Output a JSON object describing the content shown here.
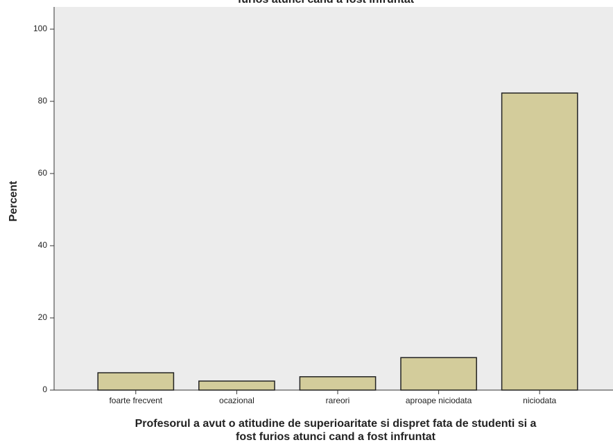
{
  "chart_data": {
    "type": "bar",
    "title": "furios atunci cand a fost infruntat",
    "x_label": [
      "Profesorul a avut o atitudine de superioaritate si dispret fata de studenti si a",
      "fost furios atunci cand a fost infruntat"
    ],
    "y_label": "Percent",
    "categories": [
      "foarte frecvent",
      "ocazional",
      "rareori",
      "aproape niciodata",
      "niciodata"
    ],
    "values": [
      4.8,
      2.5,
      3.7,
      9.0,
      82.3
    ],
    "color": "#d3cc9b",
    "ylim": [
      0,
      100
    ],
    "yticks": [
      0,
      20,
      40,
      60,
      80,
      100
    ],
    "grid": false
  }
}
